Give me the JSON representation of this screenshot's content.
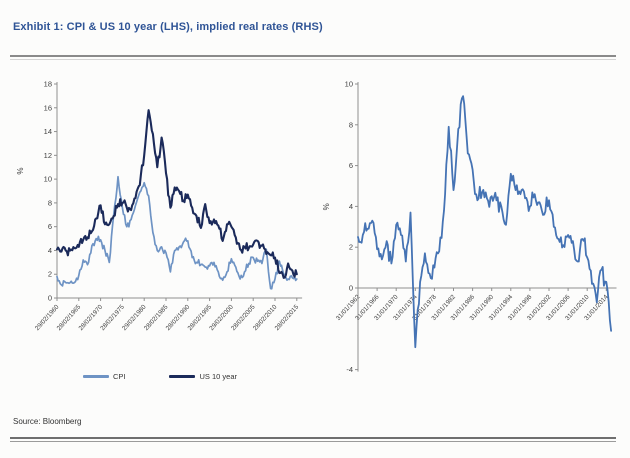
{
  "page": {
    "title": "Exhibit 1: CPI & US 10 year (LHS), implied real rates (RHS)",
    "source": "Source: Bloomberg"
  },
  "colors": {
    "title_text": "#2f5496",
    "axis": "#8f8f8f",
    "tick_text": "#404040",
    "cpi_line": "#6e93c4",
    "us10_line": "#1b2a5a",
    "real_rate_line": "#4573b4"
  },
  "chart_data": [
    {
      "type": "line",
      "title": "CPI & US 10 year (LHS)",
      "ylabel": "%",
      "ylim": [
        0,
        18
      ],
      "yticks": [
        18,
        16,
        14,
        12,
        10,
        8,
        6,
        4,
        2,
        0
      ],
      "grid": false,
      "legend_position": "bottom",
      "x_start_year": 1960,
      "x_step_years": 1,
      "x_first_tick": 1960,
      "x_tick_step": 5,
      "xticklabels": [
        "29/02/1960",
        "28/02/1965",
        "28/02/1970",
        "28/02/1975",
        "29/02/1980",
        "28/02/1985",
        "28/02/1990",
        "28/02/1995",
        "29/02/2000",
        "28/02/2005",
        "28/02/2010",
        "28/02/2015"
      ],
      "series": [
        {
          "name": "CPI",
          "color": "#6e93c4",
          "values": [
            1.8,
            1.1,
            1.3,
            1.3,
            1.3,
            1.9,
            3.2,
            2.8,
            4.4,
            5.0,
            4.9,
            4.0,
            3.0,
            7.0,
            10.2,
            7.6,
            6.0,
            6.6,
            7.8,
            8.9,
            9.7,
            8.6,
            5.5,
            4.0,
            4.3,
            3.8,
            2.2,
            4.0,
            4.3,
            4.7,
            4.8,
            3.4,
            3.0,
            2.8,
            2.6,
            2.7,
            3.0,
            2.2,
            1.5,
            2.2,
            3.3,
            2.6,
            1.6,
            2.2,
            2.9,
            3.4,
            3.1,
            2.9,
            4.1,
            0.8,
            1.6,
            3.1,
            2.0,
            1.6,
            1.7,
            1.6
          ]
        },
        {
          "name": "US 10 year",
          "color": "#1b2a5a",
          "values": [
            4.1,
            3.9,
            4.0,
            4.0,
            4.2,
            4.3,
            4.9,
            5.1,
            5.6,
            6.7,
            7.8,
            6.2,
            6.2,
            6.9,
            7.9,
            8.0,
            7.6,
            7.4,
            8.4,
            9.5,
            12.0,
            15.8,
            13.8,
            11.0,
            13.5,
            10.5,
            7.6,
            9.3,
            9.0,
            8.2,
            8.7,
            7.6,
            6.9,
            5.9,
            7.9,
            6.3,
            6.6,
            6.1,
            4.8,
            6.2,
            6.0,
            5.1,
            4.1,
            4.3,
            4.2,
            4.5,
            4.8,
            4.4,
            3.7,
            3.6,
            3.4,
            2.1,
            1.7,
            2.9,
            2.3,
            2.0
          ]
        }
      ]
    },
    {
      "type": "line",
      "title": "implied real rates (RHS)",
      "ylabel": "%",
      "ylim": [
        -4,
        10
      ],
      "yticks": [
        10,
        8,
        6,
        4,
        2,
        0,
        -4
      ],
      "grid": false,
      "legend_position": "none",
      "x_start_year": 1962,
      "x_step_years": 1,
      "x_first_tick": 1962,
      "x_tick_step": 4,
      "xticklabels": [
        "31/01/1962",
        "31/01/1966",
        "31/01/1970",
        "31/01/1974",
        "31/01/1978",
        "31/01/1982",
        "31/01/1986",
        "31/01/1990",
        "31/01/1994",
        "31/01/1998",
        "31/01/2002",
        "31/01/2006",
        "31/01/2010",
        "31/01/2014"
      ],
      "series": [
        {
          "name": "Implied real rates",
          "color": "#4573b4",
          "values": [
            2.5,
            2.6,
            2.9,
            3.3,
            1.9,
            1.4,
            2.3,
            1.2,
            3.1,
            2.6,
            1.3,
            3.7,
            -2.9,
            0.3,
            1.7,
            0.7,
            1.0,
            1.8,
            3.8,
            7.9,
            4.8,
            7.8,
            9.4,
            6.6,
            5.8,
            4.3,
            4.7,
            4.4,
            4.5,
            4.3,
            4.0,
            3.1,
            5.6,
            4.8,
            4.6,
            4.4,
            4.0,
            4.6,
            4.2,
            3.6,
            4.3,
            3.0,
            2.4,
            2.1,
            2.6,
            2.3,
            1.3,
            2.4,
            1.5,
            0.2,
            -0.7,
            0.9,
            0.3,
            -2.1
          ]
        }
      ]
    }
  ]
}
